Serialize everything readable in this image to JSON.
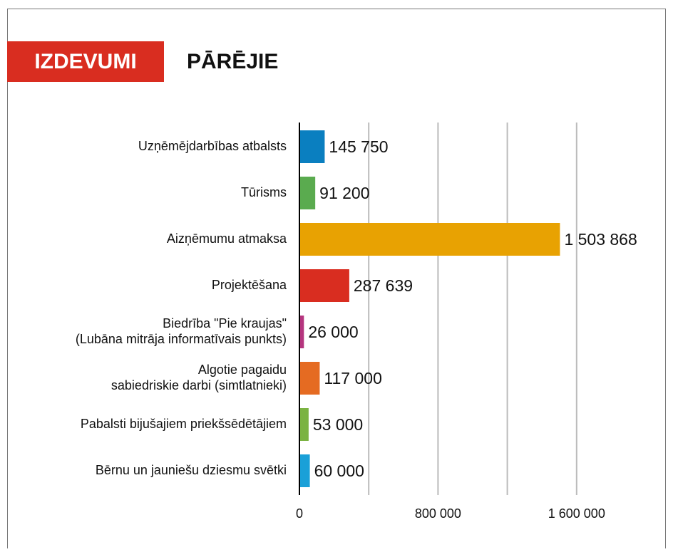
{
  "chart_data": {
    "type": "hbar",
    "tag": "IZDEVUMI",
    "title": "PĀRĒJIE",
    "categories": [
      [
        "Uzņēmējdarbības atbalsts"
      ],
      [
        "Tūrisms"
      ],
      [
        "Aizņēmumu atmaksa"
      ],
      [
        "Projektēšana"
      ],
      [
        "Biedrība \"Pie kraujas\"",
        "(Lubāna mitrāja informatīvais punkts)"
      ],
      [
        "Algotie pagaidu",
        "sabiedriskie darbi (simtlatnieki)"
      ],
      [
        "Pabalsti bijušajiem priekšsēdētājiem"
      ],
      [
        "Bērnu un jauniešu dziesmu svētki"
      ]
    ],
    "values": [
      145750,
      91200,
      1503868,
      287639,
      26000,
      117000,
      53000,
      60000
    ],
    "value_labels": [
      "145 750",
      "91 200",
      "1 503 868",
      "287 639",
      "26 000",
      "117 000",
      "53 000",
      "60 000"
    ],
    "colors": [
      "#0a7fc0",
      "#5aab4f",
      "#e8a202",
      "#d92d20",
      "#b5357e",
      "#e56b22",
      "#7bb342",
      "#1aa0d8"
    ],
    "xlim": [
      0,
      2000000
    ],
    "xticks": [
      0,
      {
        "value": 800000,
        "label": "800 000"
      },
      {
        "value": 1600000,
        "label": "1 600 000"
      }
    ],
    "minor_xticks": [
      400000,
      1200000
    ],
    "grid": true
  }
}
